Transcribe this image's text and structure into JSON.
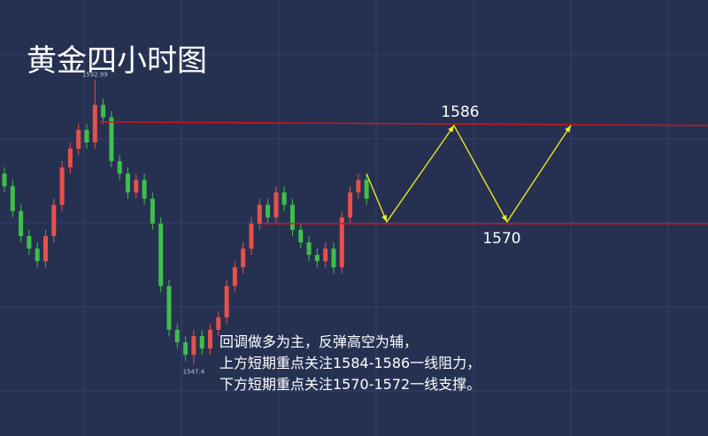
{
  "chart_data": {
    "type": "candlestick",
    "title": "黄金四小时图",
    "open": [
      1578,
      1576,
      1572,
      1568,
      1566,
      1564,
      1568,
      1573,
      1579,
      1582,
      1585,
      1583,
      1589,
      1587,
      1580,
      1578,
      1575,
      1577,
      1574,
      1570,
      1560,
      1553,
      1551,
      1549,
      1552,
      1550,
      1553,
      1555,
      1560,
      1563,
      1566,
      1570,
      1573,
      1571,
      1575,
      1573,
      1569,
      1567,
      1565,
      1564,
      1566,
      1563,
      1571,
      1575,
      1577
    ],
    "high": [
      1579,
      1577,
      1573,
      1569,
      1567,
      1569,
      1574,
      1580,
      1583,
      1586,
      1586,
      1592.99,
      1590,
      1588,
      1581,
      1579,
      1578,
      1578,
      1575,
      1571,
      1561,
      1554,
      1552,
      1553,
      1553,
      1554,
      1556,
      1561,
      1564,
      1567,
      1571,
      1574,
      1574,
      1576,
      1576,
      1574,
      1570,
      1568,
      1566,
      1567,
      1567,
      1572,
      1576,
      1578,
      1578
    ],
    "low": [
      1575,
      1571,
      1567,
      1565,
      1563,
      1563,
      1567,
      1572,
      1578,
      1581,
      1582,
      1582,
      1586,
      1579,
      1577,
      1574,
      1574,
      1573,
      1569,
      1559,
      1552,
      1550,
      1548,
      1547.4,
      1549,
      1549,
      1552,
      1554,
      1559,
      1562,
      1565,
      1569,
      1570,
      1570,
      1572,
      1568,
      1566,
      1564,
      1563,
      1563,
      1562,
      1562,
      1570,
      1574,
      1573
    ],
    "close": [
      1576,
      1572,
      1568,
      1566,
      1564,
      1568,
      1573,
      1579,
      1582,
      1585,
      1583,
      1589,
      1587,
      1580,
      1578,
      1575,
      1577,
      1574,
      1570,
      1560,
      1553,
      1551,
      1549,
      1552,
      1550,
      1553,
      1555,
      1560,
      1563,
      1566,
      1570,
      1573,
      1571,
      1575,
      1573,
      1569,
      1567,
      1565,
      1564,
      1566,
      1563,
      1571,
      1575,
      1577,
      1574
    ],
    "up_color": "#e8504a",
    "down_color": "#3fbf4a",
    "ylim": [
      1536,
      1605.8
    ],
    "resistance": 1586,
    "support": 1570,
    "level_color": "#d0151b",
    "path_color": "#f5f020",
    "notes": [
      "回调做多为主，反弹高空为辅，",
      "上方短期重点关注1584-1586一线阻力，",
      "下方短期重点关注1570-1572一线支撑。"
    ]
  }
}
